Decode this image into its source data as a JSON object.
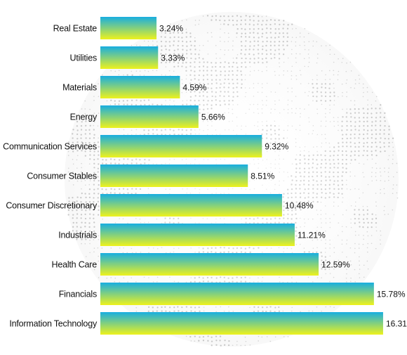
{
  "chart_data": {
    "type": "bar",
    "orientation": "horizontal",
    "categories": [
      "Real Estate",
      "Utilities",
      "Materials",
      "Energy",
      "Communication Services",
      "Consumer Stables",
      "Consumer Discretionary",
      "Industrials",
      "Health Care",
      "Financials",
      "Information Technology"
    ],
    "values": [
      3.24,
      3.33,
      4.59,
      5.66,
      9.32,
      8.51,
      10.48,
      11.21,
      12.59,
      15.78,
      16.31
    ],
    "value_labels": [
      "3.24%",
      "3.33%",
      "4.59%",
      "5.66%",
      "9.32%",
      "8.51%",
      "10.48%",
      "11.21%",
      "12.59%",
      "15.78%",
      "16.31%"
    ],
    "xlim": [
      0,
      17
    ],
    "grid": false,
    "legend": "none",
    "title": "",
    "xlabel": "",
    "ylabel": "",
    "bar_gradient": {
      "top": "#18aee0",
      "bottom": "#eef21c"
    },
    "background_motif": "dotted-globe"
  }
}
